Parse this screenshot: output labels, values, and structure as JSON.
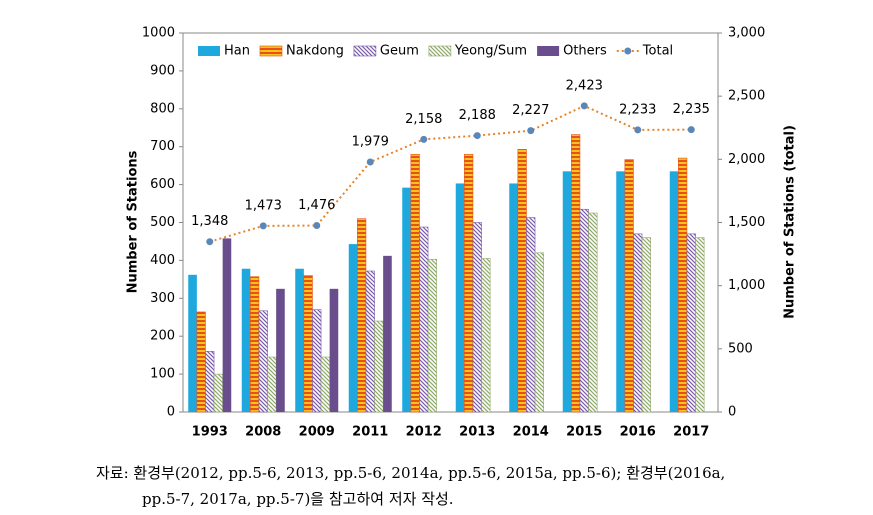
{
  "chart_data": {
    "type": "bar",
    "y_label": "Number of Stations",
    "y2_label": "Number of Stations (total)",
    "categories": [
      "1993",
      "2008",
      "2009",
      "2011",
      "2012",
      "2013",
      "2014",
      "2015",
      "2016",
      "2017"
    ],
    "series": [
      {
        "name": "Han",
        "color": "#1ea8de",
        "pattern": "solid",
        "values": [
          362,
          378,
          378,
          443,
          592,
          603,
          603,
          635,
          635,
          635
        ]
      },
      {
        "name": "Nakdong",
        "color": "#e8501a",
        "pattern": "horizontal",
        "values": [
          264,
          357,
          360,
          510,
          680,
          680,
          693,
          732,
          666,
          670
        ]
      },
      {
        "name": "Geum",
        "color": "#7a5aa8",
        "pattern": "diagonal",
        "values": [
          160,
          267,
          270,
          372,
          488,
          500,
          513,
          535,
          470,
          470
        ]
      },
      {
        "name": "Yeong/Sum",
        "color": "#8ea86a",
        "pattern": "diagonal",
        "values": [
          100,
          145,
          145,
          240,
          403,
          405,
          420,
          525,
          460,
          460
        ]
      },
      {
        "name": "Others",
        "color": "#6a4d8c",
        "pattern": "solid",
        "values": [
          458,
          325,
          325,
          412,
          null,
          null,
          null,
          null,
          null,
          null
        ]
      },
      {
        "name": "Total",
        "type": "line",
        "axis": "y2",
        "color": "#e8822a",
        "marker_color": "#5b87b8",
        "values": [
          1348,
          1473,
          1476,
          1979,
          2158,
          2188,
          2227,
          2423,
          2233,
          2235
        ],
        "value_labels": [
          "1,348",
          "1,473",
          "1,476",
          "1,979",
          "2,158",
          "2,188",
          "2,227",
          "2,423",
          "2,233",
          "2,235"
        ]
      }
    ],
    "ylim": [
      0,
      1000
    ],
    "yticks": [
      0,
      100,
      200,
      300,
      400,
      500,
      600,
      700,
      800,
      900,
      1000
    ],
    "y2lim": [
      0,
      3000
    ],
    "y2ticks": [
      0,
      500,
      {
        "value": 1000,
        "label": "1,000"
      },
      {
        "value": 1500,
        "label": "1,500"
      },
      {
        "value": 2000,
        "label": "2,000"
      },
      {
        "value": 2500,
        "label": "2,500"
      },
      {
        "value": 3000,
        "label": "3,000"
      }
    ],
    "grid": false,
    "legend": "top"
  },
  "caption": [
    "자료: 환경부(2012, pp.5-6, 2013, pp.5-6, 2014a, pp.5-6, 2015a, pp.5-6); 환경부(2016a,",
    "pp.5-7, 2017a, pp.5-7)을 참고하여 저자 작성."
  ]
}
